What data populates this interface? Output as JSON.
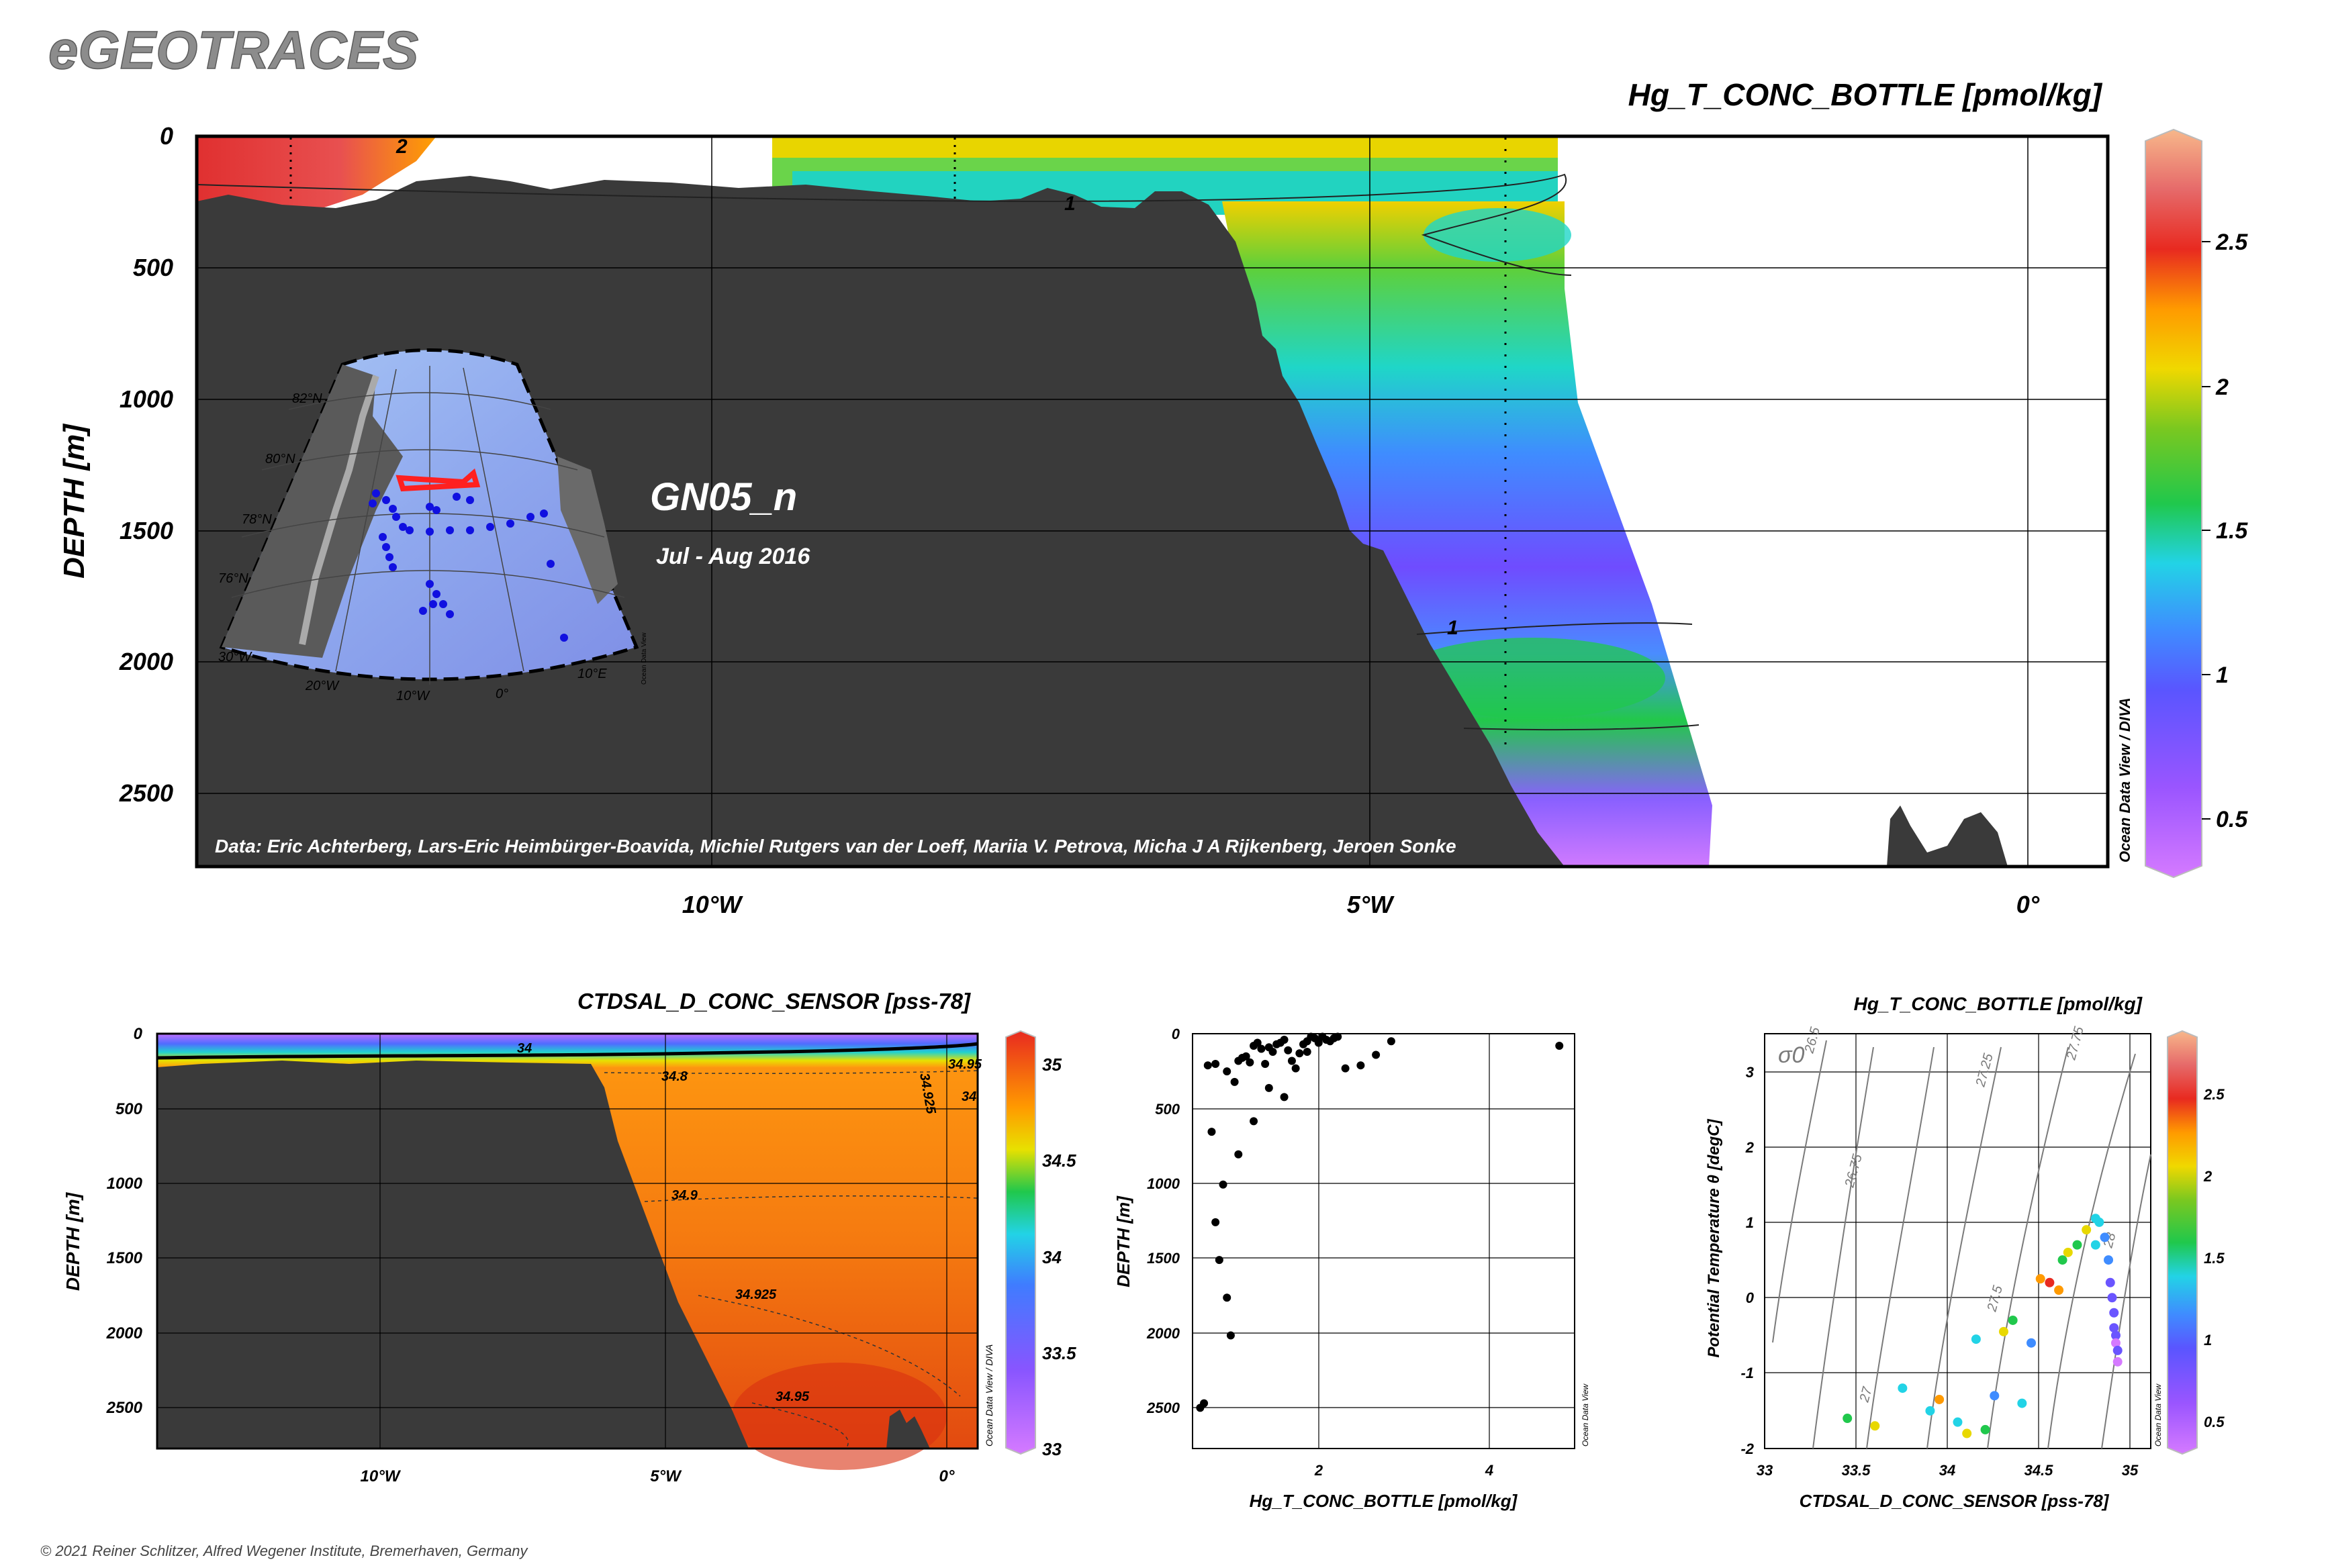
{
  "brand": "eGEOTRACES",
  "copyright": "© 2021 Reiner Schlitzer, Alfred Wegener Institute, Bremerhaven, Germany",
  "colors": {
    "land": "#3a3a3a",
    "frame": "#000000",
    "scatter_points": "#000000",
    "map_track_highlight": "#ff2020",
    "map_stations": "#1010e0"
  },
  "main_section": {
    "title": "Hg_T_CONC_BOTTLE [pmol/kg]",
    "ylabel": "DEPTH [m]",
    "cruise": "GN05_n",
    "period": "Jul - Aug 2016",
    "credits": "Data: Eric Achterberg, Lars-Eric Heimbürger-Boavida, Michiel Rutgers van der Loeff, Mariia V. Petrova, Micha J A Rijkenberg, Jeroen Sonke",
    "odv_label": "Ocean Data View / DIVA",
    "x_ticks": [
      "10°W",
      "5°W",
      "0°"
    ],
    "y_ticks": [
      "0",
      "500",
      "1000",
      "1500",
      "2000",
      "2500"
    ],
    "contour_labels": [
      "2",
      "1",
      "1"
    ],
    "colorbar_ticks": [
      "2.5",
      "2",
      "1.5",
      "1",
      "0.5"
    ]
  },
  "inset_map": {
    "lat_labels": [
      "82°N",
      "80°N",
      "78°N",
      "76°N"
    ],
    "lon_labels": [
      "30°W",
      "20°W",
      "10°W",
      "0°",
      "10°E"
    ],
    "odv_label": "Ocean Data View"
  },
  "sal_section": {
    "title": "CTDSAL_D_CONC_SENSOR [pss-78]",
    "ylabel": "DEPTH [m]",
    "odv_label": "Ocean Data View / DIVA",
    "x_ticks": [
      "10°W",
      "5°W",
      "0°"
    ],
    "y_ticks": [
      "0",
      "500",
      "1000",
      "1500",
      "2000",
      "2500"
    ],
    "contour_labels": [
      "34",
      "34.8",
      "34.9",
      "34.925",
      "34.95",
      "34.925",
      "34.95",
      "34"
    ],
    "colorbar_ticks": [
      "35",
      "34.5",
      "34",
      "33.5",
      "33"
    ]
  },
  "ts_plot": {
    "title": "Hg_T_CONC_BOTTLE [pmol/kg]",
    "xlabel": "CTDSAL_D_CONC_SENSOR [pss-78]",
    "ylabel": "Potential Temperature θ [degC]",
    "sigma_label": "σ0",
    "odv_label": "Ocean Data View",
    "isopycnal_labels": [
      "26.5",
      "26.75",
      "27",
      "27.25",
      "27.5",
      "27.75",
      "28"
    ],
    "colorbar_ticks": [
      "2.5",
      "2",
      "1.5",
      "1",
      "0.5"
    ]
  },
  "chart_data": [
    {
      "type": "scatter",
      "name_ref": "profile",
      "xlabel": "Hg_T_CONC_BOTTLE [pmol/kg]",
      "ylabel": "DEPTH [m]",
      "xlim": [
        0,
        5
      ],
      "ylim": [
        2750,
        0
      ],
      "x_ticks": [
        "2",
        "4"
      ],
      "y_ticks": [
        "0",
        "500",
        "1000",
        "1500",
        "2000",
        "2500"
      ],
      "odv_label": "Ocean Data View",
      "x": [
        0.2,
        0.3,
        0.45,
        0.55,
        0.6,
        0.65,
        0.7,
        0.75,
        0.8,
        0.85,
        0.9,
        0.95,
        1.0,
        1.05,
        1.1,
        1.15,
        1.2,
        1.25,
        1.3,
        1.35,
        1.4,
        1.45,
        1.5,
        1.55,
        1.6,
        1.65,
        1.7,
        1.75,
        1.8,
        1.85,
        1.9,
        2.0,
        2.2,
        2.4,
        2.6,
        4.8,
        1.2,
        1.0,
        0.8,
        0.6,
        0.4,
        0.3,
        0.35,
        0.45,
        0.5,
        0.15,
        0.1,
        1.5,
        0.25
      ],
      "y": [
        210,
        200,
        250,
        320,
        180,
        160,
        150,
        190,
        80,
        60,
        100,
        200,
        90,
        120,
        70,
        60,
        40,
        110,
        180,
        230,
        130,
        70,
        50,
        20,
        30,
        60,
        20,
        40,
        50,
        30,
        20,
        230,
        210,
        140,
        50,
        80,
        420,
        360,
        580,
        800,
        1000,
        1250,
        1500,
        1750,
        2000,
        2450,
        2480,
        120,
        650
      ]
    },
    {
      "type": "scatter",
      "name_ref": "ts",
      "xlabel": "CTDSAL_D_CONC_SENSOR [pss-78]",
      "ylabel": "Potential Temperature θ [degC]",
      "xlim": [
        33,
        35.1
      ],
      "ylim": [
        -2,
        3.5
      ],
      "x_ticks": [
        "33",
        "33.5",
        "34",
        "34.5",
        "35"
      ],
      "y_ticks": [
        "-2",
        "-1",
        "0",
        "1",
        "2",
        "3"
      ],
      "x": [
        33.45,
        33.6,
        33.75,
        33.95,
        34.05,
        34.15,
        34.2,
        34.3,
        34.45,
        34.55,
        34.62,
        34.7,
        34.75,
        34.8,
        34.82,
        34.85,
        34.87,
        34.88,
        34.89,
        34.9,
        34.9,
        34.91,
        34.91,
        34.92,
        34.92,
        34.8,
        34.6,
        34.4,
        34.25,
        34.1,
        33.9,
        34.5,
        34.35,
        34.65
      ],
      "y": [
        -1.6,
        -1.7,
        -1.2,
        -1.35,
        -1.65,
        -0.55,
        -1.75,
        -0.45,
        -0.6,
        0.2,
        0.5,
        0.7,
        0.9,
        1.05,
        1.0,
        0.8,
        0.5,
        0.2,
        0.0,
        -0.2,
        -0.4,
        -0.5,
        -0.6,
        -0.7,
        -0.85,
        0.7,
        0.1,
        -1.4,
        -1.3,
        -1.8,
        -1.5,
        0.25,
        -0.3,
        0.6
      ],
      "values": [
        1.6,
        1.7,
        1.1,
        2.2,
        1.2,
        1.1,
        1.5,
        1.8,
        1.0,
        2.3,
        1.4,
        1.6,
        1.9,
        1.3,
        1.2,
        1.0,
        0.9,
        0.8,
        0.7,
        0.6,
        0.7,
        0.6,
        0.5,
        0.6,
        0.4,
        1.1,
        2.0,
        1.2,
        1.0,
        1.8,
        1.3,
        2.1,
        1.5,
        1.7
      ],
      "zlabel": "Hg_T_CONC_BOTTLE [pmol/kg]"
    }
  ]
}
